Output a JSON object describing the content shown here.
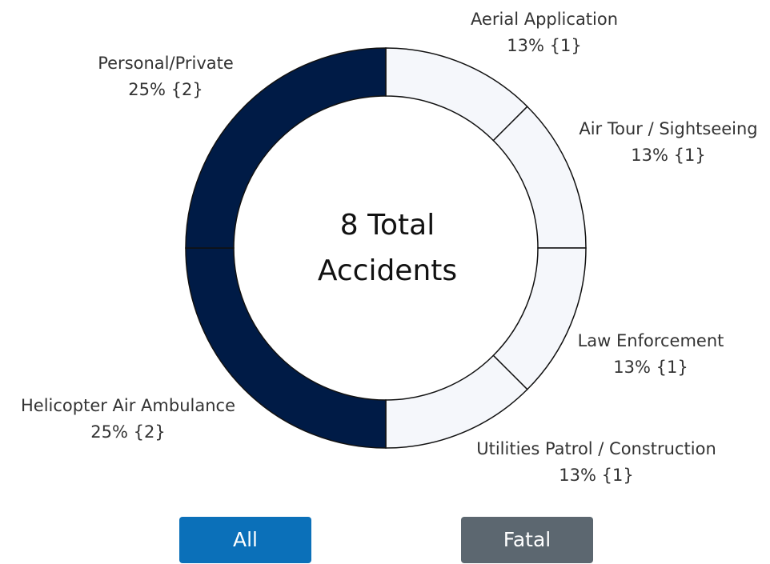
{
  "chart_data": {
    "type": "donut",
    "center_label": [
      "8 Total",
      "Accidents"
    ],
    "categories": [
      "Aerial Application",
      "Air Tour / Sightseeing",
      "Law Enforcement",
      "Utilities Patrol / Construction",
      "Helicopter Air Ambulance",
      "Personal/Private"
    ],
    "values": [
      1,
      1,
      1,
      1,
      2,
      2
    ],
    "value_labels": [
      "13% {1}",
      "13% {1}",
      "13% {1}",
      "13% {1}",
      "25% {2}",
      "25% {2}"
    ],
    "colors": [
      "#f5f7fb",
      "#f5f7fb",
      "#f5f7fb",
      "#f5f7fb",
      "#001b46",
      "#001b46"
    ]
  },
  "buttons": [
    {
      "label": "All",
      "color": "#0b70b9"
    },
    {
      "label": "Fatal",
      "color": "#5c6770"
    }
  ]
}
